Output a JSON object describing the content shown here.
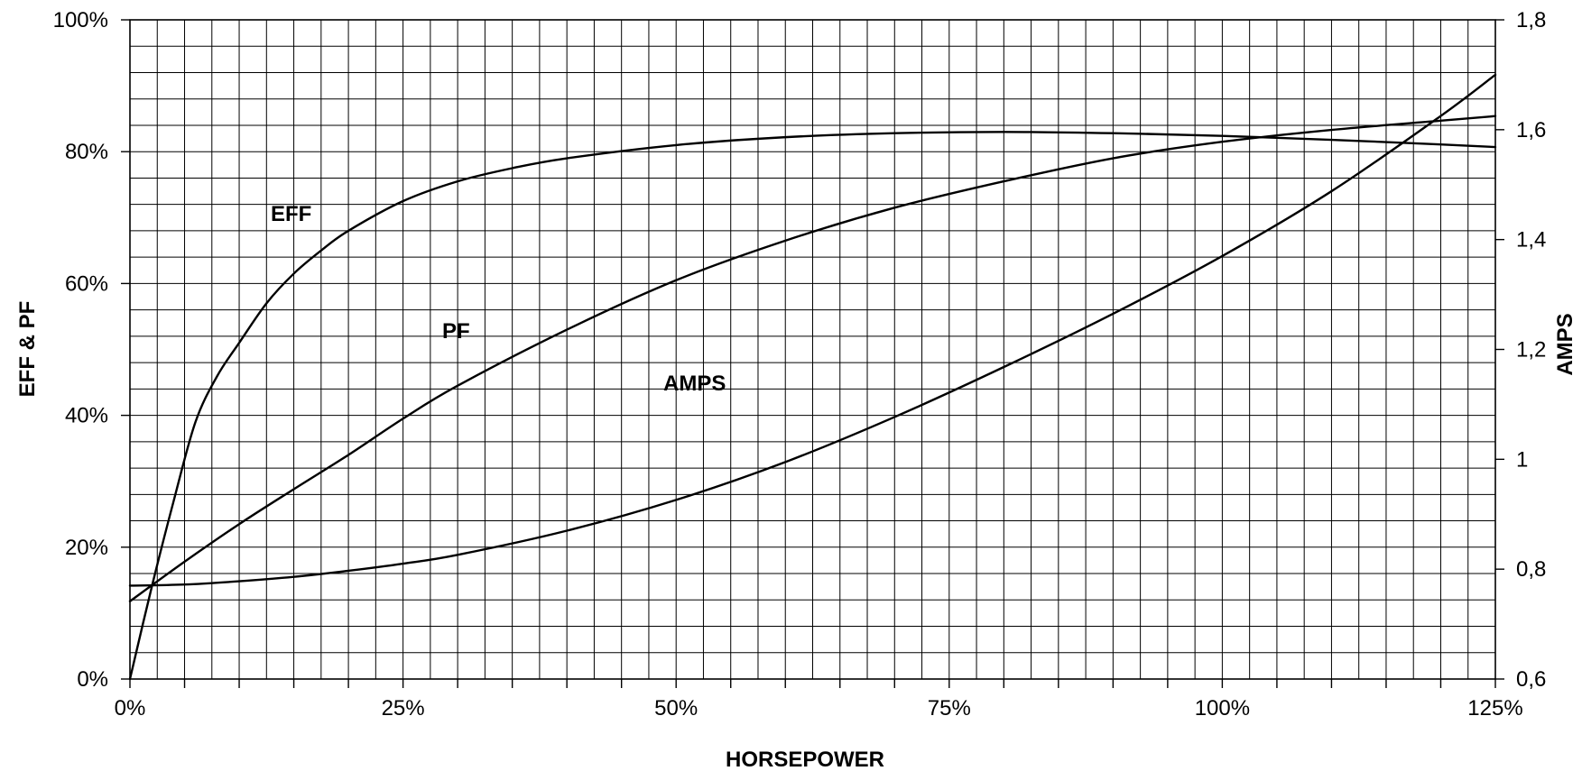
{
  "chart_data": {
    "type": "line",
    "title": "",
    "xlabel": "HORSEPOWER",
    "ylabel_left": "EFF & PF",
    "ylabel_right": "AMPS",
    "xlim": [
      0,
      125
    ],
    "ylim_left": [
      0,
      100
    ],
    "ylim_right": [
      0.6,
      1.8
    ],
    "grid": true,
    "x_ticks": [
      "0%",
      "25%",
      "50%",
      "75%",
      "100%",
      "125%"
    ],
    "y_left_ticks": [
      "0%",
      "20%",
      "40%",
      "60%",
      "80%",
      "100%"
    ],
    "y_right_ticks": [
      "0,6",
      "0,8",
      "1",
      "1,2",
      "1,4",
      "1,6",
      "1,8"
    ],
    "series": [
      {
        "name": "EFF",
        "axis": "left",
        "x": [
          0,
          2,
          4,
          6,
          8,
          10,
          12.5,
          15,
          17.5,
          20,
          25,
          30,
          35,
          40,
          50,
          60,
          70,
          80,
          90,
          100,
          110,
          120,
          125
        ],
        "y": [
          0,
          14,
          27,
          39,
          46,
          51,
          57,
          61.5,
          65,
          68,
          72.5,
          75.5,
          77.5,
          79,
          81,
          82.2,
          82.8,
          83,
          82.8,
          82.4,
          81.8,
          81.1,
          80.7
        ]
      },
      {
        "name": "PF",
        "axis": "left",
        "x": [
          0,
          5,
          10,
          15,
          20,
          25,
          30,
          40,
          50,
          60,
          70,
          80,
          90,
          100,
          110,
          120,
          125
        ],
        "y": [
          11.8,
          17.8,
          23.5,
          28.8,
          34,
          39.5,
          44.5,
          53,
          60.5,
          66.5,
          71.5,
          75.5,
          79,
          81.5,
          83.3,
          84.7,
          85.4
        ]
      },
      {
        "name": "AMPS",
        "axis": "right",
        "x": [
          0,
          5,
          10,
          15,
          20,
          25,
          30,
          40,
          50,
          60,
          70,
          80,
          90,
          100,
          110,
          120,
          125
        ],
        "y": [
          0.77,
          0.772,
          0.778,
          0.786,
          0.797,
          0.81,
          0.826,
          0.87,
          0.926,
          0.995,
          1.077,
          1.168,
          1.265,
          1.37,
          1.488,
          1.625,
          1.7
        ]
      }
    ]
  }
}
